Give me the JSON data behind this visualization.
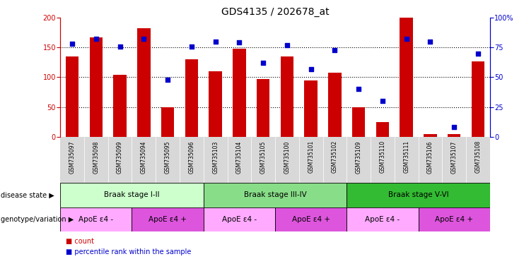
{
  "title": "GDS4135 / 202678_at",
  "samples": [
    "GSM735097",
    "GSM735098",
    "GSM735099",
    "GSM735094",
    "GSM735095",
    "GSM735096",
    "GSM735103",
    "GSM735104",
    "GSM735105",
    "GSM735100",
    "GSM735101",
    "GSM735102",
    "GSM735109",
    "GSM735110",
    "GSM735111",
    "GSM735106",
    "GSM735107",
    "GSM735108"
  ],
  "counts": [
    135,
    167,
    104,
    182,
    50,
    130,
    110,
    148,
    97,
    135,
    95,
    108,
    50,
    25,
    200,
    5,
    5,
    127
  ],
  "percentiles": [
    78,
    82,
    76,
    82,
    48,
    76,
    80,
    79,
    62,
    77,
    57,
    73,
    40,
    30,
    82,
    80,
    8,
    70
  ],
  "ylim_left": [
    0,
    200
  ],
  "ylim_right": [
    0,
    100
  ],
  "yticks_left": [
    0,
    50,
    100,
    150,
    200
  ],
  "yticks_right": [
    0,
    25,
    50,
    75,
    100
  ],
  "ytick_labels_right": [
    "0",
    "25",
    "50",
    "75",
    "100%"
  ],
  "bar_color": "#cc0000",
  "dot_color": "#0000cc",
  "disease_state_groups": [
    {
      "label": "Braak stage I-II",
      "start": 0,
      "end": 6,
      "color": "#ccffcc"
    },
    {
      "label": "Braak stage III-IV",
      "start": 6,
      "end": 12,
      "color": "#88dd88"
    },
    {
      "label": "Braak stage V-VI",
      "start": 12,
      "end": 18,
      "color": "#33bb33"
    }
  ],
  "genotype_groups": [
    {
      "label": "ApoE ε4 -",
      "start": 0,
      "end": 3,
      "color": "#ffaaff"
    },
    {
      "label": "ApoE ε4 +",
      "start": 3,
      "end": 6,
      "color": "#dd55dd"
    },
    {
      "label": "ApoE ε4 -",
      "start": 6,
      "end": 9,
      "color": "#ffaaff"
    },
    {
      "label": "ApoE ε4 +",
      "start": 9,
      "end": 12,
      "color": "#dd55dd"
    },
    {
      "label": "ApoE ε4 -",
      "start": 12,
      "end": 15,
      "color": "#ffaaff"
    },
    {
      "label": "ApoE ε4 +",
      "start": 15,
      "end": 18,
      "color": "#dd55dd"
    }
  ],
  "legend_count_label": "count",
  "legend_percentile_label": "percentile rank within the sample",
  "disease_state_label": "disease state",
  "genotype_label": "genotype/variation",
  "title_fontsize": 10,
  "axis_fontsize": 7,
  "tick_fontsize": 5.5,
  "label_row_fontsize": 7.5,
  "annot_fontsize": 7
}
